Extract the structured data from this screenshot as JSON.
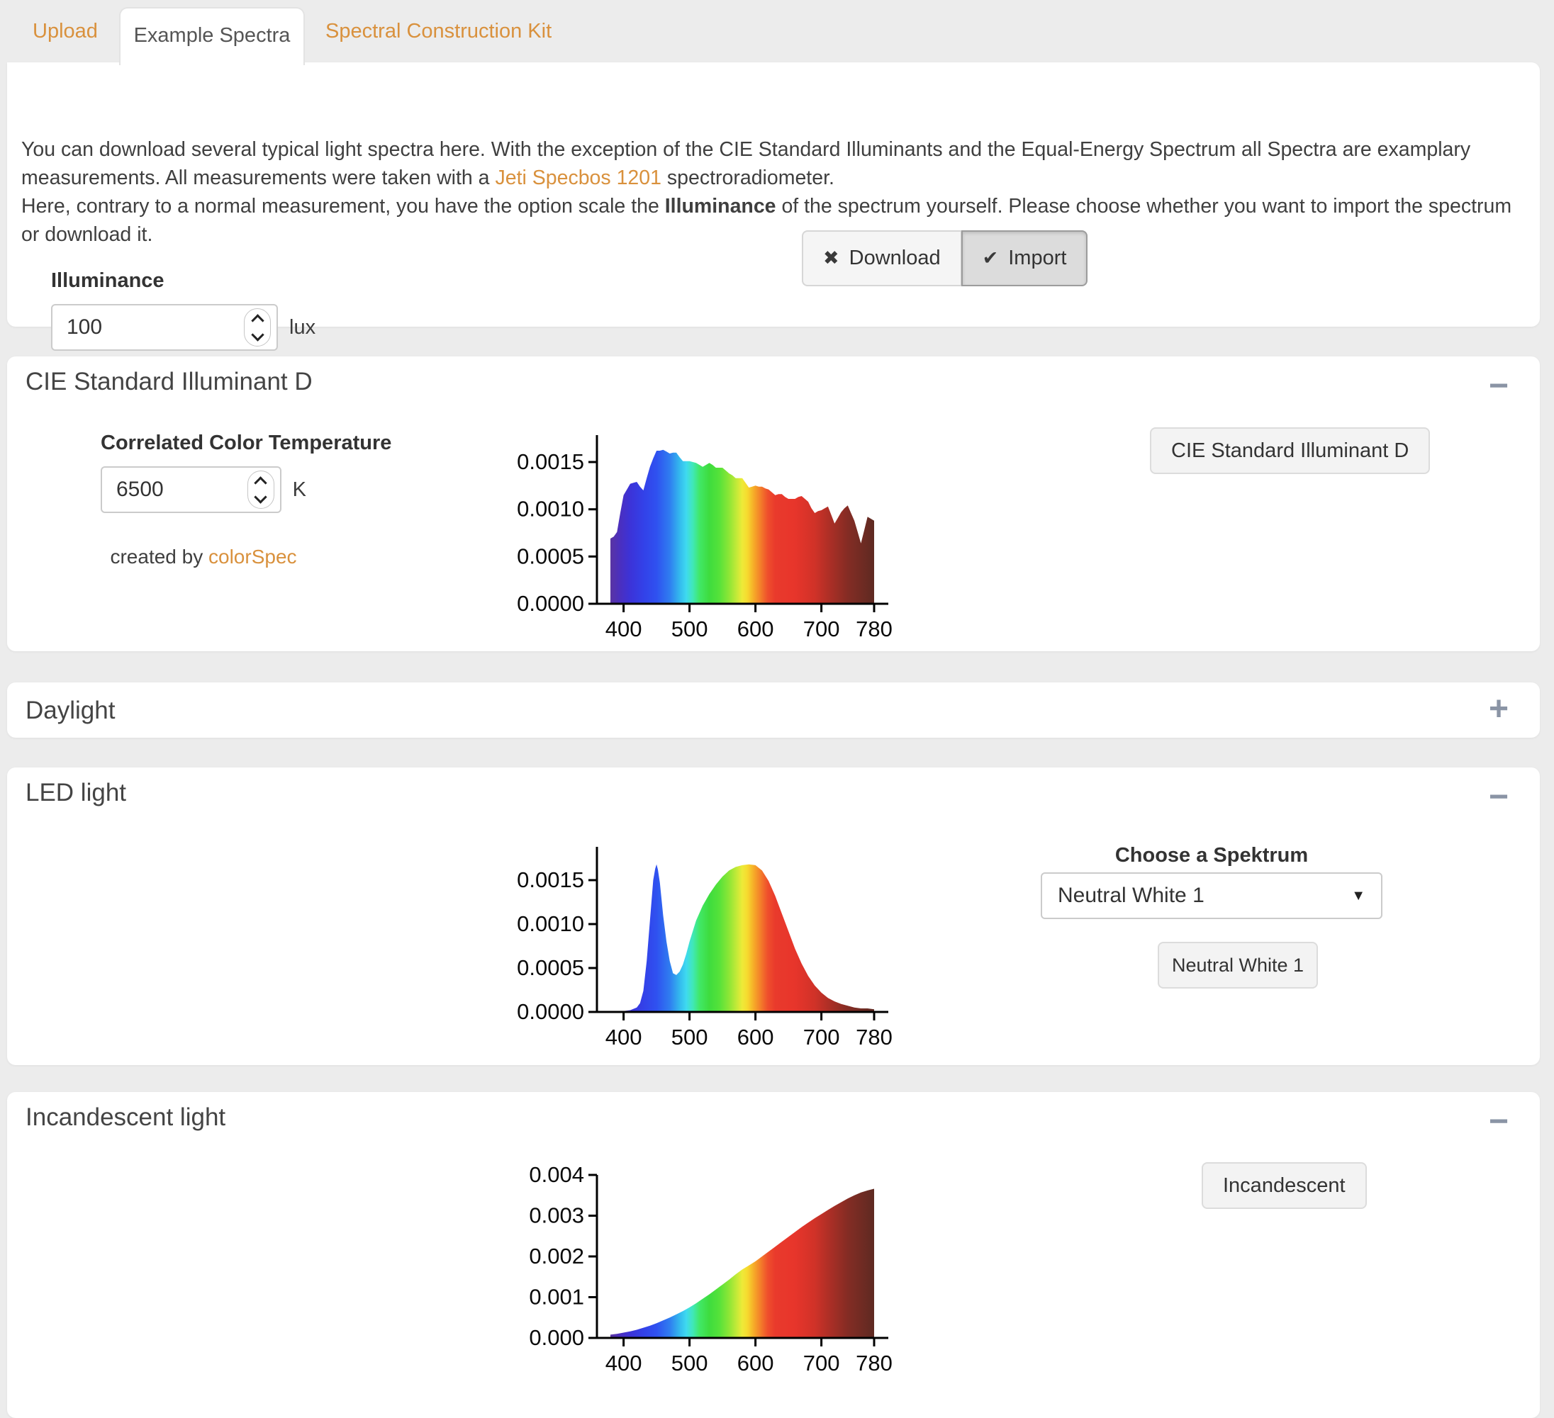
{
  "tabs": [
    {
      "label": "Upload",
      "active": false
    },
    {
      "label": "Example Spectra",
      "active": true
    },
    {
      "label": "Spectral Construction Kit",
      "active": false
    }
  ],
  "intro": {
    "p1_before": "You can download several typical light spectra here. With the exception of the CIE Standard Illuminants and the Equal-Energy Spectrum all Spectra are examplary measurements. All measurements were taken with a ",
    "p1_link": "Jeti Specbos 1201",
    "p1_after": " spectroradiometer.",
    "p2_before": "Here, contrary to a normal measurement, you have the option scale the ",
    "p2_bold": "Illuminance",
    "p2_after": " of the spectrum yourself. Please choose whether you want to import the spectrum or download it."
  },
  "illuminance": {
    "label": "Illuminance",
    "value": "100",
    "unit": "lux"
  },
  "actions": {
    "download": "Download",
    "import": "Import"
  },
  "icons": {
    "close": "✖",
    "check": "✔",
    "minus": "−",
    "plus": "+",
    "caret": "▼"
  },
  "panels": {
    "cie": {
      "title": "CIE Standard Illuminant D",
      "cct_label": "Correlated Color Temperature",
      "cct_value": "6500",
      "cct_unit": "K",
      "credit_before": "created by ",
      "credit_link": "colorSpec",
      "button": "CIE Standard Illuminant D"
    },
    "daylight": {
      "title": "Daylight"
    },
    "led": {
      "title": "LED light",
      "choose_label": "Choose a Spektrum",
      "select_value": "Neutral White 1",
      "button": "Neutral White 1"
    },
    "incandescent": {
      "title": "Incandescent light",
      "button": "Incandescent"
    }
  },
  "colors": {
    "accent_orange": "#d9913d",
    "page_background": "#ececec",
    "panel_title": "#444444",
    "collapse_icon": "#8a94a5"
  },
  "spectrum_gradient": [
    {
      "nm": 380,
      "color": "#5a34a2"
    },
    {
      "nm": 395,
      "color": "#4a2fc0"
    },
    {
      "nm": 410,
      "color": "#3c33d8"
    },
    {
      "nm": 430,
      "color": "#3341e8"
    },
    {
      "nm": 450,
      "color": "#2f51f0"
    },
    {
      "nm": 470,
      "color": "#2f7df0"
    },
    {
      "nm": 485,
      "color": "#33b9ee"
    },
    {
      "nm": 495,
      "color": "#3fd9f0"
    },
    {
      "nm": 505,
      "color": "#40e8b8"
    },
    {
      "nm": 515,
      "color": "#41e868"
    },
    {
      "nm": 530,
      "color": "#3edc3e"
    },
    {
      "nm": 545,
      "color": "#55e23a"
    },
    {
      "nm": 560,
      "color": "#8ee636"
    },
    {
      "nm": 572,
      "color": "#c6ea38"
    },
    {
      "nm": 580,
      "color": "#eeea38"
    },
    {
      "nm": 588,
      "color": "#f6d92e"
    },
    {
      "nm": 598,
      "color": "#f6a928"
    },
    {
      "nm": 608,
      "color": "#f37d2a"
    },
    {
      "nm": 618,
      "color": "#ef512c"
    },
    {
      "nm": 630,
      "color": "#e93a2c"
    },
    {
      "nm": 660,
      "color": "#e7352b"
    },
    {
      "nm": 690,
      "color": "#d03228"
    },
    {
      "nm": 710,
      "color": "#b02f26"
    },
    {
      "nm": 740,
      "color": "#842c24"
    },
    {
      "nm": 780,
      "color": "#5e2a22"
    }
  ],
  "chart_data": [
    {
      "id": "cie-standard-illuminant-d",
      "type": "area",
      "title": "CIE Standard Illuminant D (6500 K) spectrum",
      "xlabel": "",
      "ylabel": "",
      "xlim": [
        380,
        780
      ],
      "ylim": [
        0,
        0.00175
      ],
      "x_ticks": [
        400,
        500,
        600,
        700,
        780
      ],
      "y_ticks": [
        0,
        0.0005,
        0.001,
        0.0015
      ],
      "y_tick_labels": [
        "0.0000",
        "0.0005",
        "0.0010",
        "0.0015"
      ],
      "points": [
        [
          380,
          0.00069
        ],
        [
          385,
          0.00071
        ],
        [
          390,
          0.00076
        ],
        [
          395,
          0.00096
        ],
        [
          400,
          0.00115
        ],
        [
          405,
          0.00121
        ],
        [
          410,
          0.00127
        ],
        [
          415,
          0.00128
        ],
        [
          420,
          0.00129
        ],
        [
          425,
          0.00124
        ],
        [
          430,
          0.0012
        ],
        [
          435,
          0.00133
        ],
        [
          440,
          0.00145
        ],
        [
          445,
          0.00154
        ],
        [
          450,
          0.00162
        ],
        [
          455,
          0.00162
        ],
        [
          460,
          0.00163
        ],
        [
          465,
          0.00161
        ],
        [
          470,
          0.00159
        ],
        [
          475,
          0.0016
        ],
        [
          480,
          0.0016
        ],
        [
          485,
          0.00155
        ],
        [
          490,
          0.00151
        ],
        [
          495,
          0.00151
        ],
        [
          500,
          0.00151
        ],
        [
          505,
          0.0015
        ],
        [
          510,
          0.00149
        ],
        [
          515,
          0.00147
        ],
        [
          520,
          0.00145
        ],
        [
          525,
          0.00147
        ],
        [
          530,
          0.00149
        ],
        [
          535,
          0.00147
        ],
        [
          540,
          0.00144
        ],
        [
          545,
          0.00144
        ],
        [
          550,
          0.00144
        ],
        [
          555,
          0.00141
        ],
        [
          560,
          0.00138
        ],
        [
          565,
          0.00136
        ],
        [
          570,
          0.00133
        ],
        [
          575,
          0.00133
        ],
        [
          580,
          0.00133
        ],
        [
          585,
          0.00128
        ],
        [
          590,
          0.00123
        ],
        [
          595,
          0.00124
        ],
        [
          600,
          0.00125
        ],
        [
          605,
          0.00124
        ],
        [
          610,
          0.00124
        ],
        [
          615,
          0.00122
        ],
        [
          620,
          0.00121
        ],
        [
          625,
          0.00118
        ],
        [
          630,
          0.00115
        ],
        [
          635,
          0.00116
        ],
        [
          640,
          0.00116
        ],
        [
          645,
          0.00113
        ],
        [
          650,
          0.00111
        ],
        [
          655,
          0.00111
        ],
        [
          660,
          0.00111
        ],
        [
          665,
          0.00113
        ],
        [
          670,
          0.00114
        ],
        [
          675,
          0.00111
        ],
        [
          680,
          0.00108
        ],
        [
          685,
          0.00101
        ],
        [
          690,
          0.00096
        ],
        [
          695,
          0.00098
        ],
        [
          700,
          0.00099
        ],
        [
          705,
          0.00101
        ],
        [
          710,
          0.00103
        ],
        [
          715,
          0.00094
        ],
        [
          720,
          0.00085
        ],
        [
          725,
          0.00091
        ],
        [
          730,
          0.00097
        ],
        [
          735,
          0.00101
        ],
        [
          740,
          0.00104
        ],
        [
          745,
          0.00096
        ],
        [
          750,
          0.00088
        ],
        [
          755,
          0.00076
        ],
        [
          760,
          0.00064
        ],
        [
          765,
          0.00078
        ],
        [
          770,
          0.00092
        ],
        [
          775,
          0.0009
        ],
        [
          780,
          0.00088
        ]
      ]
    },
    {
      "id": "led-neutral-white-1",
      "type": "area",
      "title": "LED light — Neutral White 1 spectrum",
      "xlabel": "",
      "ylabel": "",
      "xlim": [
        380,
        780
      ],
      "ylim": [
        0,
        0.00175
      ],
      "x_ticks": [
        400,
        500,
        600,
        700,
        780
      ],
      "y_ticks": [
        0,
        0.0005,
        0.001,
        0.0015
      ],
      "y_tick_labels": [
        "0.0000",
        "0.0005",
        "0.0010",
        "0.0015"
      ],
      "points": [
        [
          380,
          1e-05
        ],
        [
          390,
          1e-05
        ],
        [
          400,
          1e-05
        ],
        [
          410,
          2e-05
        ],
        [
          420,
          5e-05
        ],
        [
          425,
          0.0001
        ],
        [
          430,
          0.00024
        ],
        [
          435,
          0.00058
        ],
        [
          440,
          0.00104
        ],
        [
          445,
          0.0015
        ],
        [
          448,
          0.00163
        ],
        [
          450,
          0.00168
        ],
        [
          452,
          0.00162
        ],
        [
          455,
          0.00147
        ],
        [
          460,
          0.0011
        ],
        [
          465,
          0.0008
        ],
        [
          470,
          0.00058
        ],
        [
          475,
          0.00044
        ],
        [
          480,
          0.00042
        ],
        [
          485,
          0.00046
        ],
        [
          490,
          0.00054
        ],
        [
          495,
          0.00066
        ],
        [
          500,
          0.0008
        ],
        [
          510,
          0.00104
        ],
        [
          520,
          0.00121
        ],
        [
          530,
          0.00134
        ],
        [
          540,
          0.00145
        ],
        [
          550,
          0.00154
        ],
        [
          560,
          0.00161
        ],
        [
          570,
          0.00165
        ],
        [
          580,
          0.00167
        ],
        [
          590,
          0.00168
        ],
        [
          600,
          0.00167
        ],
        [
          610,
          0.00161
        ],
        [
          620,
          0.00149
        ],
        [
          630,
          0.00132
        ],
        [
          640,
          0.00112
        ],
        [
          650,
          0.00092
        ],
        [
          660,
          0.00072
        ],
        [
          670,
          0.00055
        ],
        [
          680,
          0.00041
        ],
        [
          690,
          0.0003
        ],
        [
          700,
          0.00022
        ],
        [
          710,
          0.00016
        ],
        [
          720,
          0.00012
        ],
        [
          730,
          9e-05
        ],
        [
          740,
          7e-05
        ],
        [
          750,
          5e-05
        ],
        [
          760,
          4e-05
        ],
        [
          770,
          4e-05
        ],
        [
          780,
          3e-05
        ]
      ]
    },
    {
      "id": "incandescent",
      "type": "area",
      "title": "Incandescent light spectrum",
      "xlabel": "",
      "ylabel": "",
      "xlim": [
        380,
        780
      ],
      "ylim": [
        0,
        0.004
      ],
      "x_ticks": [
        400,
        500,
        600,
        700,
        780
      ],
      "y_ticks": [
        0,
        0.001,
        0.002,
        0.003,
        0.004
      ],
      "y_tick_labels": [
        "0.000",
        "0.001",
        "0.002",
        "0.003",
        "0.004"
      ],
      "points": [
        [
          380,
          8e-05
        ],
        [
          390,
          0.0001
        ],
        [
          400,
          0.00013
        ],
        [
          410,
          0.00016
        ],
        [
          420,
          0.0002
        ],
        [
          430,
          0.00025
        ],
        [
          440,
          0.0003
        ],
        [
          450,
          0.00036
        ],
        [
          460,
          0.00043
        ],
        [
          470,
          0.0005
        ],
        [
          480,
          0.00058
        ],
        [
          490,
          0.00066
        ],
        [
          500,
          0.00075
        ],
        [
          510,
          0.00085
        ],
        [
          520,
          0.00096
        ],
        [
          530,
          0.00107
        ],
        [
          540,
          0.00119
        ],
        [
          550,
          0.00131
        ],
        [
          560,
          0.00143
        ],
        [
          570,
          0.00156
        ],
        [
          580,
          0.00168
        ],
        [
          590,
          0.00178
        ],
        [
          600,
          0.00188
        ],
        [
          610,
          0.002
        ],
        [
          620,
          0.00212
        ],
        [
          630,
          0.00224
        ],
        [
          640,
          0.00236
        ],
        [
          650,
          0.00248
        ],
        [
          660,
          0.0026
        ],
        [
          670,
          0.00272
        ],
        [
          680,
          0.00283
        ],
        [
          690,
          0.00294
        ],
        [
          700,
          0.00304
        ],
        [
          710,
          0.00314
        ],
        [
          720,
          0.00324
        ],
        [
          730,
          0.00333
        ],
        [
          740,
          0.00342
        ],
        [
          750,
          0.0035
        ],
        [
          760,
          0.00357
        ],
        [
          770,
          0.00362
        ],
        [
          780,
          0.00366
        ]
      ]
    }
  ]
}
